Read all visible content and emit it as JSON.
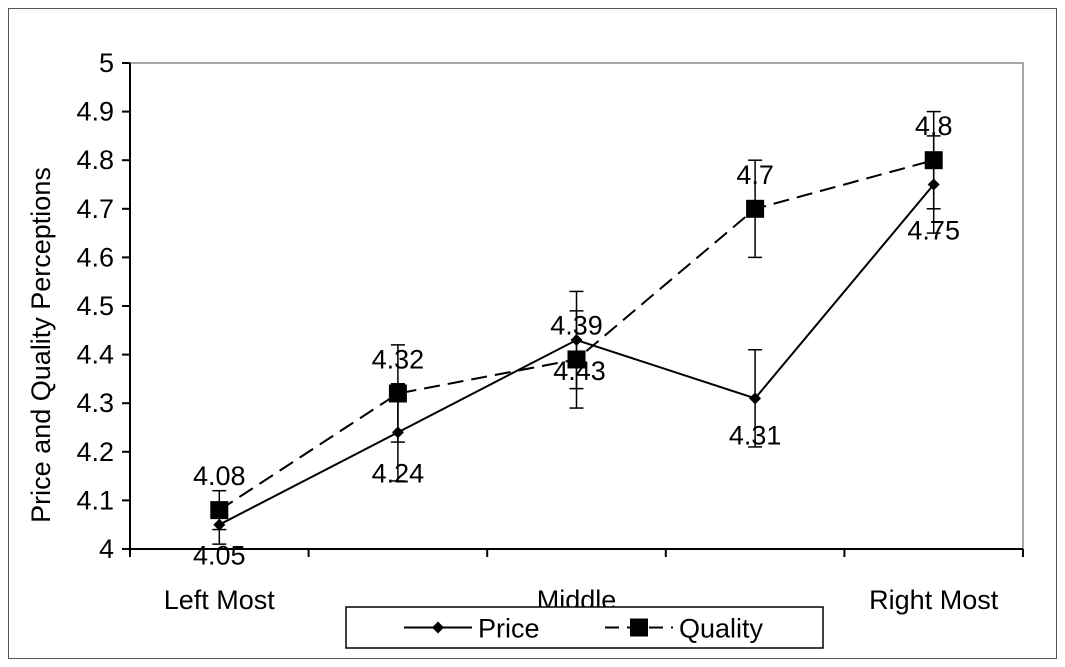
{
  "chart_data": {
    "type": "line",
    "title": "",
    "xlabel": "",
    "ylabel": "Price and Quality Perceptions",
    "ylim": [
      4,
      5
    ],
    "yticks": [
      "4",
      "4.1",
      "4.2",
      "4.3",
      "4.4",
      "4.5",
      "4.6",
      "4.7",
      "4.8",
      "4.9",
      "5"
    ],
    "x": [
      1,
      2,
      3,
      4,
      5
    ],
    "category_labels": [
      {
        "x": 1,
        "label": "Left Most"
      },
      {
        "x": 3,
        "label": "Middle"
      },
      {
        "x": 5,
        "label": "Right Most"
      }
    ],
    "series": [
      {
        "name": "Price",
        "values": [
          4.05,
          4.24,
          4.43,
          4.31,
          4.75
        ],
        "labels": [
          "4.05",
          "4.24",
          "4.43",
          "4.31",
          "4.75"
        ],
        "error_low": [
          4.01,
          4.14,
          4.33,
          4.21,
          4.65
        ],
        "error_high": [
          4.09,
          4.34,
          4.53,
          4.41,
          4.85
        ],
        "marker": "diamond",
        "line": "solid",
        "color": "#000000"
      },
      {
        "name": "Quality",
        "values": [
          4.08,
          4.32,
          4.39,
          4.7,
          4.8
        ],
        "labels": [
          "4.08",
          "4.32",
          "4.39",
          "4.7",
          "4.8"
        ],
        "error_low": [
          4.04,
          4.22,
          4.29,
          4.6,
          4.7
        ],
        "error_high": [
          4.12,
          4.42,
          4.49,
          4.8,
          4.9
        ],
        "marker": "square",
        "line": "dashed",
        "color": "#000000"
      }
    ],
    "legend": "bottom-center",
    "grid": false
  }
}
